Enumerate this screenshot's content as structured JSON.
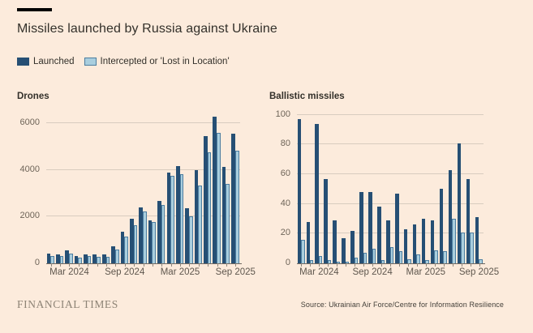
{
  "page": {
    "background": "#fcebdc",
    "brand_bar_color": "#000000",
    "title": "Missiles launched by Russia against Ukraine",
    "title_color": "#33302a",
    "footer_logo": "FINANCIAL TIMES",
    "footer_logo_color": "#8d8375",
    "source": "Source: Ukrainian Air Force/Centre for Information Resilience",
    "source_color": "#44403a"
  },
  "legend": {
    "items": [
      {
        "label": "Launched",
        "swatch": "#264f74",
        "swatch_border": "#264f74"
      },
      {
        "label": "Intercepted or 'Lost in Location'",
        "swatch": "#a9cede",
        "swatch_border": "#4c7da0"
      }
    ]
  },
  "style": {
    "grid_color": "#d8ccbf",
    "baseline_color": "#6f6861",
    "tick_color": "#8f867c",
    "ytick_text_color": "#6e6458",
    "xtick_text_color": "#5f574e",
    "subtitle_color": "#33302a"
  },
  "chart_data": [
    {
      "type": "bar",
      "title": "Drones",
      "categories": [
        "Jan 2024",
        "Feb 2024",
        "Mar 2024",
        "Apr 2024",
        "May 2024",
        "Jun 2024",
        "Jul 2024",
        "Aug 2024",
        "Sep 2024",
        "Oct 2024",
        "Nov 2024",
        "Dec 2024",
        "Jan 2025",
        "Feb 2025",
        "Mar 2025",
        "Apr 2025",
        "May 2025",
        "Jun 2025",
        "Jul 2025",
        "Aug 2025",
        "Sep 2025"
      ],
      "series": [
        {
          "name": "Launched",
          "color": "#264f74",
          "values": [
            420,
            400,
            570,
            310,
            400,
            380,
            380,
            720,
            1340,
            1910,
            2410,
            1840,
            2670,
            3880,
            4180,
            2380,
            4000,
            5440,
            6300,
            4130,
            5570
          ]
        },
        {
          "name": "Intercepted or 'Lost in Location'",
          "color": "#a9cede",
          "edge": "#4c7da0",
          "values": [
            310,
            300,
            420,
            240,
            310,
            290,
            290,
            580,
            1140,
            1640,
            2230,
            1760,
            2520,
            3770,
            3830,
            2020,
            3340,
            4750,
            5580,
            3410,
            4840
          ]
        }
      ],
      "xlabel": "",
      "ylabel": "",
      "ylim": [
        0,
        6430
      ],
      "yticks": [
        0,
        2000,
        4000,
        6000
      ],
      "xticks": [
        {
          "index": 2,
          "label": "Mar 2024"
        },
        {
          "index": 8,
          "label": "Sep 2024"
        },
        {
          "index": 14,
          "label": "Mar 2025"
        },
        {
          "index": 20,
          "label": "Sep 2025"
        }
      ],
      "grid": true,
      "legend_position": "top-shared"
    },
    {
      "type": "bar",
      "title": "Ballistic missiles",
      "categories": [
        "Jan 2024",
        "Feb 2024",
        "Mar 2024",
        "Apr 2024",
        "May 2024",
        "Jun 2024",
        "Jul 2024",
        "Aug 2024",
        "Sep 2024",
        "Oct 2024",
        "Nov 2024",
        "Dec 2024",
        "Jan 2025",
        "Feb 2025",
        "Mar 2025",
        "Apr 2025",
        "May 2025",
        "Jun 2025",
        "Jul 2025",
        "Aug 2025",
        "Sep 2025"
      ],
      "series": [
        {
          "name": "Launched",
          "color": "#264f74",
          "values": [
            97,
            28,
            94,
            57,
            29,
            17,
            22,
            48,
            48,
            38,
            29,
            47,
            23,
            26,
            30,
            29,
            50,
            63,
            81,
            57,
            31
          ]
        },
        {
          "name": "Intercepted or 'Lost in Location'",
          "color": "#a9cede",
          "edge": "#4c7da0",
          "values": [
            16,
            2,
            5,
            2,
            1,
            1,
            4,
            7,
            10,
            2,
            11,
            8,
            3,
            6,
            2,
            9,
            8,
            30,
            21,
            21,
            3
          ]
        }
      ],
      "xlabel": "",
      "ylabel": "",
      "ylim": [
        0,
        101
      ],
      "yticks": [
        0,
        20,
        40,
        60,
        80,
        100
      ],
      "xticks": [
        {
          "index": 2,
          "label": "Mar 2024"
        },
        {
          "index": 8,
          "label": "Sep 2024"
        },
        {
          "index": 14,
          "label": "Mar 2025"
        },
        {
          "index": 20,
          "label": "Sep 2025"
        }
      ],
      "grid": true,
      "legend_position": "top-shared"
    }
  ]
}
